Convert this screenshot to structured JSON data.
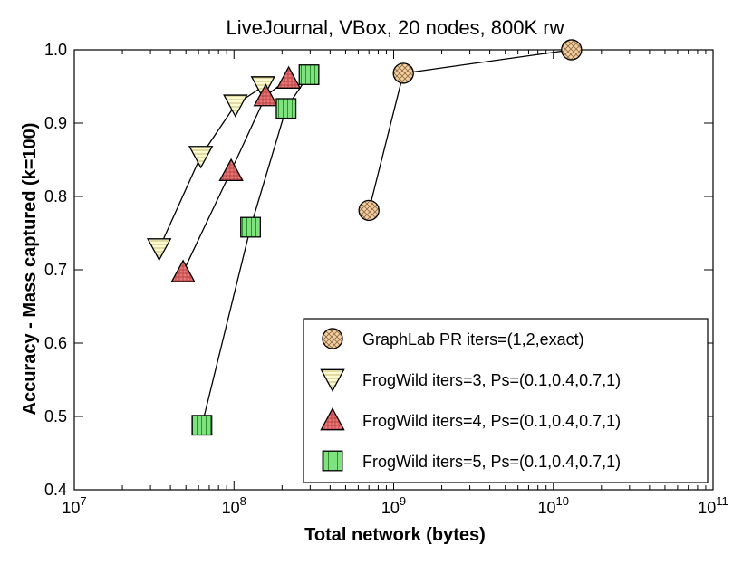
{
  "chart_data": {
    "type": "line",
    "title": "LiveJournal, VBox, 20 nodes, 800K rw",
    "xlabel": "Total network (bytes)",
    "ylabel": "Accuracy - Mass captured (k=100)",
    "xscale": "log",
    "xlim": [
      10000000.0,
      100000000000.0
    ],
    "ylim": [
      0.4,
      1.0
    ],
    "x_ticks": [
      {
        "value": 10000000.0,
        "base": "10",
        "exp": "7"
      },
      {
        "value": 100000000.0,
        "base": "10",
        "exp": "8"
      },
      {
        "value": 1000000000.0,
        "base": "10",
        "exp": "9"
      },
      {
        "value": 10000000000.0,
        "base": "10",
        "exp": "10"
      },
      {
        "value": 100000000000.0,
        "base": "10",
        "exp": "11"
      }
    ],
    "y_ticks": [
      {
        "value": 0.4,
        "label": "0.4"
      },
      {
        "value": 0.5,
        "label": "0.5"
      },
      {
        "value": 0.6,
        "label": "0.6"
      },
      {
        "value": 0.7,
        "label": "0.7"
      },
      {
        "value": 0.8,
        "label": "0.8"
      },
      {
        "value": 0.9,
        "label": "0.9"
      },
      {
        "value": 1.0,
        "label": "1.0"
      }
    ],
    "grid": false,
    "legend_position": "lower-right",
    "series": [
      {
        "name": "GraphLab PR iters=(1,2,exact)",
        "marker": "circle",
        "color": "#f5cfa0",
        "stroke": "#000000",
        "x": [
          700000000.0,
          1150000000.0,
          13000000000.0
        ],
        "y": [
          0.781,
          0.968,
          1.0
        ]
      },
      {
        "name": "FrogWild iters=3, Ps=(0.1,0.4,0.7,1)",
        "marker": "triangle-down",
        "color": "#fdfbd0",
        "stroke": "#000000",
        "x": [
          34000000.0,
          62000000.0,
          102000000.0,
          152000000.0
        ],
        "y": [
          0.729,
          0.855,
          0.925,
          0.95
        ]
      },
      {
        "name": "FrogWild iters=4, Ps=(0.1,0.4,0.7,1)",
        "marker": "triangle-up",
        "color": "#ec7575",
        "stroke": "#000000",
        "x": [
          48000000.0,
          96000000.0,
          158000000.0,
          220000000.0
        ],
        "y": [
          0.697,
          0.835,
          0.937,
          0.961
        ]
      },
      {
        "name": "FrogWild iters=5, Ps=(0.1,0.4,0.7,1)",
        "marker": "square",
        "color": "#7ee27e",
        "stroke": "#000000",
        "x": [
          63000000.0,
          127000000.0,
          212000000.0,
          295000000.0
        ],
        "y": [
          0.488,
          0.758,
          0.92,
          0.966
        ]
      }
    ]
  }
}
